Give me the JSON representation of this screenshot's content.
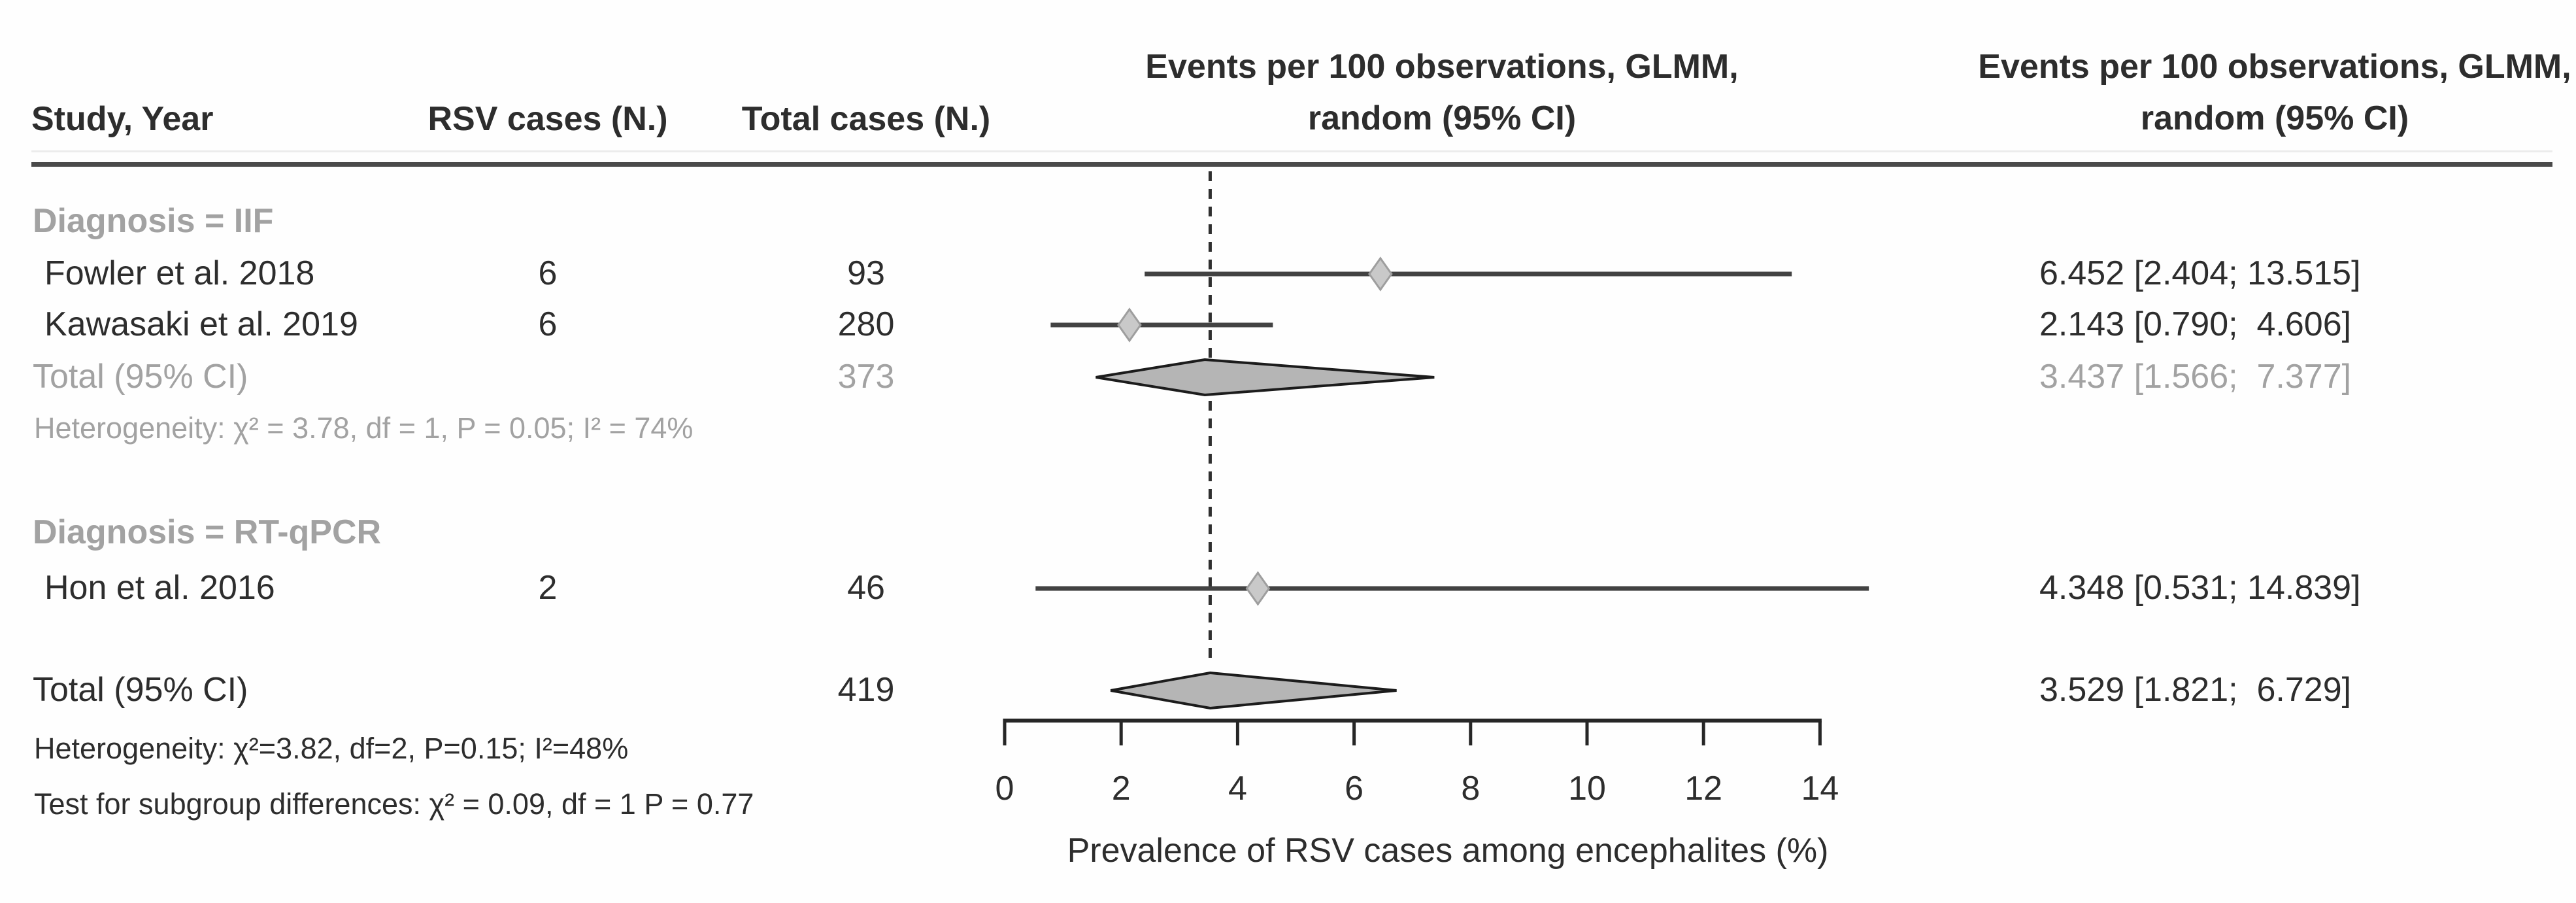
{
  "table": {
    "headers": {
      "study": "Study, Year",
      "rsv": "RSV cases (N.)",
      "total": "Total cases (N.)",
      "plot_line1": "Events per 100 observations, GLMM,",
      "plot_line2": "random (95% CI)",
      "values_line1": "Events per 100 observations, GLMM,",
      "values_line2": "random (95% CI)"
    },
    "sections": [
      {
        "label": "Diagnosis = IIF",
        "rows": [
          {
            "study": "Fowler et al. 2018",
            "rsv": "6",
            "total": "93",
            "ci_text": "6.452 [2.404; 13.515]"
          },
          {
            "study": "Kawasaki et al. 2019",
            "rsv": "6",
            "total": "280",
            "ci_text": "2.143 [0.790;  4.606]"
          }
        ],
        "total_row": {
          "label": "Total (95% CI)",
          "total": "373",
          "ci_text": "3.437 [1.566;  7.377]"
        },
        "heterogeneity": "Heterogeneity: χ² = 3.78, df = 1, P = 0.05; I² = 74%"
      },
      {
        "label": "Diagnosis = RT-qPCR",
        "rows": [
          {
            "study": "Hon et al. 2016",
            "rsv": "2",
            "total": "46",
            "ci_text": "4.348 [0.531; 14.839]"
          }
        ]
      }
    ],
    "overall": {
      "label": "Total (95% CI)",
      "total": "419",
      "ci_text": "3.529 [1.821;  6.729]",
      "heterogeneity": "Heterogeneity: χ²=3.82, df=2, P=0.15; I²=48%",
      "subgroup_test": "Test for subgroup differences: χ² = 0.09, df = 1 P = 0.77"
    }
  },
  "chart_data": {
    "type": "forest",
    "xlabel": "Prevalence of RSV cases among encephalites (%)",
    "x_ticks": [
      0,
      2,
      4,
      6,
      8,
      10,
      12,
      14
    ],
    "xlim": [
      0,
      14.9
    ],
    "reference_line": 3.529,
    "grid": false,
    "studies": [
      {
        "id": "fowler",
        "label": "Fowler et al. 2018",
        "est": 6.452,
        "lo": 2.404,
        "hi": 13.515
      },
      {
        "id": "kawasaki",
        "label": "Kawasaki et al. 2019",
        "est": 2.143,
        "lo": 0.79,
        "hi": 4.606
      },
      {
        "id": "hon",
        "label": "Hon et al. 2016",
        "est": 4.348,
        "lo": 0.531,
        "hi": 14.839
      }
    ],
    "diamonds": [
      {
        "id": "iif_total",
        "label": "Total (95% CI) IIF subgroup",
        "est": 3.437,
        "lo": 1.566,
        "hi": 7.377
      },
      {
        "id": "overall_total",
        "label": "Total (95% CI) overall",
        "est": 3.529,
        "lo": 1.821,
        "hi": 6.729
      }
    ]
  },
  "colors": {
    "black_text": "#2d2d2d",
    "grey_text": "#a2a2a2",
    "rule": "#4a4a4a",
    "ci_line": "#424242",
    "marker_fill": "#c9c9c9",
    "marker_stroke": "#9e9e9e",
    "diamond_fill": "#b5b5b5",
    "diamond_stroke": "#1c1c1c",
    "axis": "#262626",
    "reference_dash": "#2f2f2f"
  }
}
